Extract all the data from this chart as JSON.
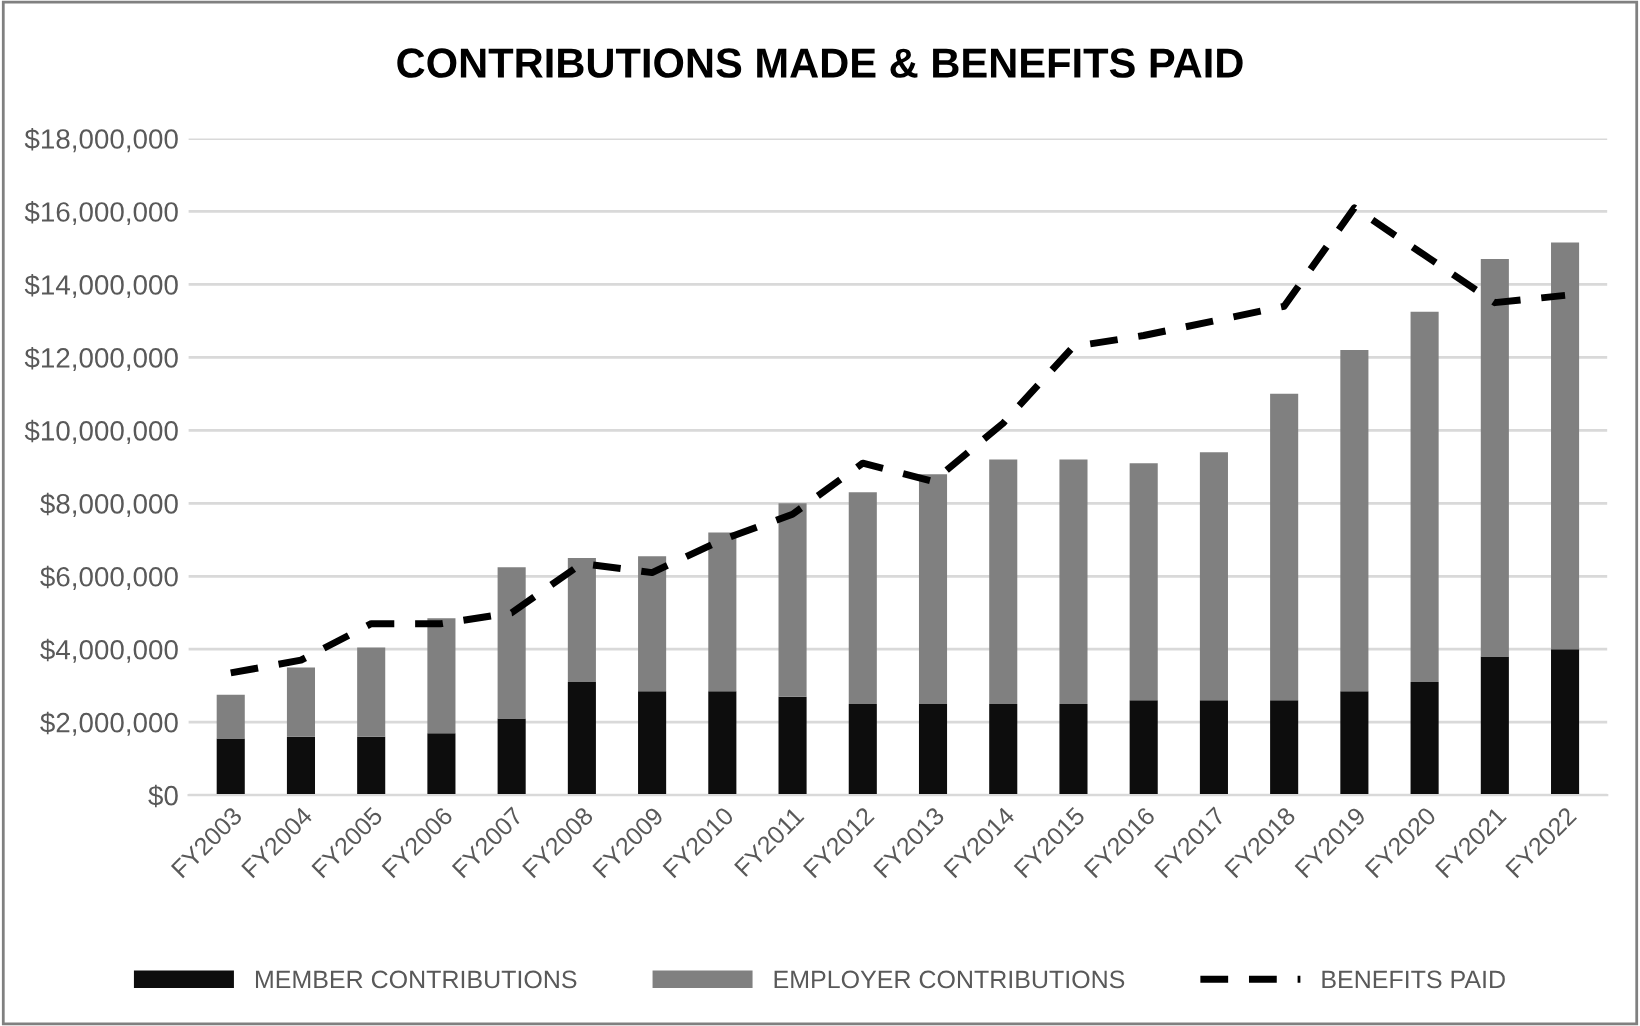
{
  "chart_data": {
    "type": "bar",
    "stacked": true,
    "title": "CONTRIBUTIONS MADE & BENEFITS PAID",
    "categories": [
      "FY2003",
      "FY2004",
      "FY2005",
      "FY2006",
      "FY2007",
      "FY2008",
      "FY2009",
      "FY2010",
      "FY2011",
      "FY2012",
      "FY2013",
      "FY2014",
      "FY2015",
      "FY2016",
      "FY2017",
      "FY2018",
      "FY2019",
      "FY2020",
      "FY2021",
      "FY2022"
    ],
    "series": [
      {
        "name": "MEMBER CONTRIBUTIONS",
        "color": "#0d0d0d",
        "values": [
          1550000,
          1600000,
          1600000,
          1700000,
          2100000,
          3100000,
          2850000,
          2850000,
          2700000,
          2500000,
          2500000,
          2500000,
          2500000,
          2600000,
          2600000,
          2600000,
          2850000,
          3100000,
          3800000,
          4000000
        ]
      },
      {
        "name": "EMPLOYER CONTRIBUTIONS",
        "color": "#808080",
        "values": [
          1200000,
          1900000,
          2450000,
          3150000,
          4150000,
          3400000,
          3700000,
          4350000,
          5300000,
          5800000,
          6300000,
          6700000,
          6700000,
          6500000,
          6800000,
          8400000,
          9350000,
          10150000,
          10900000,
          11150000
        ]
      },
      {
        "name": "BENEFITS PAID",
        "type": "line",
        "line_style": "dashed",
        "color": "#000000",
        "values": [
          3350000,
          3700000,
          4700000,
          4700000,
          5000000,
          6350000,
          6100000,
          7000000,
          7700000,
          9100000,
          8600000,
          10200000,
          12300000,
          12600000,
          13000000,
          13400000,
          16100000,
          14800000,
          13500000,
          13700000
        ]
      }
    ],
    "ylim": [
      0,
      18000000
    ],
    "yticks": [
      {
        "value": 0,
        "label": "$0"
      },
      {
        "value": 2000000,
        "label": "$2,000,000"
      },
      {
        "value": 4000000,
        "label": "$4,000,000"
      },
      {
        "value": 6000000,
        "label": "$6,000,000"
      },
      {
        "value": 8000000,
        "label": "$8,000,000"
      },
      {
        "value": 10000000,
        "label": "$10,000,000"
      },
      {
        "value": 12000000,
        "label": "$12,000,000"
      },
      {
        "value": 14000000,
        "label": "$14,000,000"
      },
      {
        "value": 16000000,
        "label": "$16,000,000"
      },
      {
        "value": 18000000,
        "label": "$18,000,000"
      }
    ],
    "grid": "y",
    "legend": "bottom"
  }
}
